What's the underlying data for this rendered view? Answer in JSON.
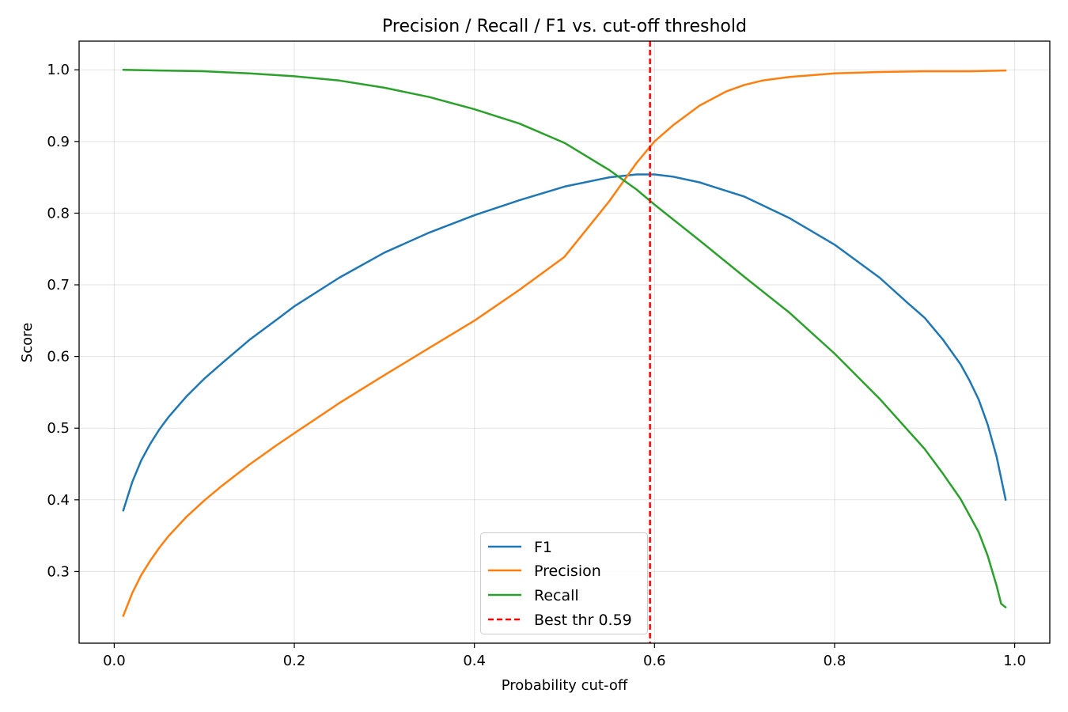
{
  "chart_data": {
    "type": "line",
    "title": "Precision / Recall / F1 vs. cut-off threshold",
    "xlabel": "Probability cut-off",
    "ylabel": "Score",
    "xlim": [
      -0.039,
      1.039
    ],
    "ylim": [
      0.2,
      1.04
    ],
    "xticks": [
      0.0,
      0.2,
      0.4,
      0.6,
      0.8,
      1.0
    ],
    "xtick_labels": [
      "0.0",
      "0.2",
      "0.4",
      "0.6",
      "0.8",
      "1.0"
    ],
    "yticks": [
      0.3,
      0.4,
      0.5,
      0.6,
      0.7,
      0.8,
      0.9,
      1.0
    ],
    "ytick_labels": [
      "0.3",
      "0.4",
      "0.5",
      "0.6",
      "0.7",
      "0.8",
      "0.9",
      "1.0"
    ],
    "grid": true,
    "legend_position": "bottom-center",
    "series": [
      {
        "name": "F1",
        "color": "#1f77b4",
        "x": [
          0.01,
          0.02,
          0.03,
          0.04,
          0.05,
          0.06,
          0.08,
          0.1,
          0.12,
          0.15,
          0.18,
          0.2,
          0.25,
          0.3,
          0.35,
          0.4,
          0.45,
          0.5,
          0.55,
          0.58,
          0.6,
          0.62,
          0.65,
          0.7,
          0.75,
          0.8,
          0.85,
          0.88,
          0.9,
          0.92,
          0.94,
          0.95,
          0.96,
          0.97,
          0.98,
          0.99
        ],
        "y": [
          0.385,
          0.425,
          0.455,
          0.478,
          0.498,
          0.515,
          0.544,
          0.569,
          0.591,
          0.623,
          0.651,
          0.67,
          0.71,
          0.745,
          0.773,
          0.797,
          0.818,
          0.837,
          0.85,
          0.854,
          0.854,
          0.851,
          0.843,
          0.823,
          0.793,
          0.756,
          0.71,
          0.676,
          0.654,
          0.624,
          0.589,
          0.566,
          0.54,
          0.505,
          0.46,
          0.4
        ]
      },
      {
        "name": "Precision",
        "color": "#ff7f0e",
        "x": [
          0.01,
          0.02,
          0.03,
          0.04,
          0.05,
          0.06,
          0.08,
          0.1,
          0.12,
          0.15,
          0.18,
          0.2,
          0.25,
          0.3,
          0.35,
          0.4,
          0.45,
          0.5,
          0.55,
          0.58,
          0.6,
          0.62,
          0.65,
          0.68,
          0.7,
          0.72,
          0.75,
          0.8,
          0.85,
          0.9,
          0.95,
          0.99
        ],
        "y": [
          0.238,
          0.27,
          0.295,
          0.315,
          0.333,
          0.349,
          0.376,
          0.399,
          0.42,
          0.449,
          0.476,
          0.493,
          0.535,
          0.574,
          0.612,
          0.65,
          0.693,
          0.739,
          0.817,
          0.87,
          0.9,
          0.922,
          0.95,
          0.97,
          0.979,
          0.985,
          0.99,
          0.995,
          0.997,
          0.998,
          0.998,
          0.999
        ]
      },
      {
        "name": "Recall",
        "color": "#2ca02c",
        "x": [
          0.01,
          0.05,
          0.1,
          0.15,
          0.2,
          0.25,
          0.3,
          0.35,
          0.4,
          0.45,
          0.5,
          0.55,
          0.58,
          0.6,
          0.65,
          0.7,
          0.75,
          0.8,
          0.85,
          0.9,
          0.92,
          0.94,
          0.96,
          0.97,
          0.98,
          0.985,
          0.99
        ],
        "y": [
          1.0,
          0.999,
          0.998,
          0.995,
          0.991,
          0.985,
          0.975,
          0.962,
          0.945,
          0.925,
          0.898,
          0.86,
          0.833,
          0.812,
          0.762,
          0.711,
          0.661,
          0.604,
          0.541,
          0.471,
          0.437,
          0.401,
          0.355,
          0.322,
          0.28,
          0.255,
          0.25
        ]
      }
    ],
    "threshold_line": {
      "name": "Best thr 0.59",
      "x": 0.595,
      "color": "#ff0000",
      "style": "dashed"
    }
  }
}
